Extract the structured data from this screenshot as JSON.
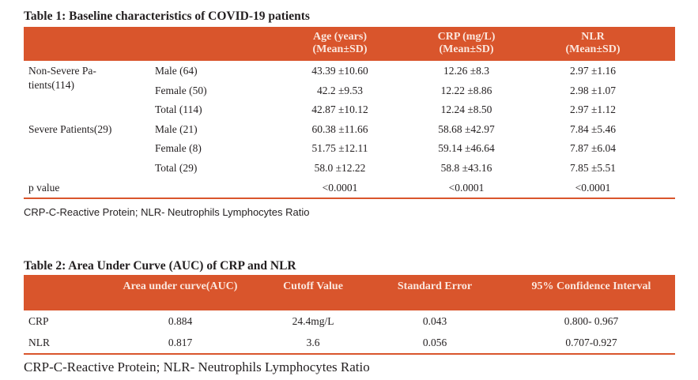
{
  "table1": {
    "caption": "Table 1: Baseline characteristics of COVID-19 patients",
    "headers": [
      {
        "line1": "Age (years)",
        "line2": "(Mean±SD)"
      },
      {
        "line1": "CRP (mg/L)",
        "line2": "(Mean±SD)"
      },
      {
        "line1": "NLR",
        "line2": "(Mean±SD)"
      }
    ],
    "groups": [
      "Non-Severe Pa-",
      "tients(114)",
      "Severe Patients(29)"
    ],
    "rows": [
      {
        "sub": "Male (64)",
        "age": "43.39 ±10.60",
        "crp": "12.26 ±8.3",
        "nlr": "2.97 ±1.16"
      },
      {
        "sub": "Female (50)",
        "age": "42.2 ±9.53",
        "crp": "12.22 ±8.86",
        "nlr": "2.98 ±1.07"
      },
      {
        "sub": "Total (114)",
        "age": "42.87 ±10.12",
        "crp": "12.24 ±8.50",
        "nlr": "2.97 ±1.12"
      },
      {
        "sub": "Male (21)",
        "age": "60.38 ±11.66",
        "crp": "58.68 ±42.97",
        "nlr": "7.84 ±5.46"
      },
      {
        "sub": "Female (8)",
        "age": "51.75 ±12.11",
        "crp": "59.14 ±46.64",
        "nlr": "7.87 ±6.04"
      },
      {
        "sub": "Total (29)",
        "age": "58.0 ±12.22",
        "crp": "58.8 ±43.16",
        "nlr": "7.85 ±5.51"
      }
    ],
    "pvalue": {
      "label": "p value",
      "age": "<0.0001",
      "crp": "<0.0001",
      "nlr": "<0.0001"
    },
    "footnote": "CRP-C-Reactive Protein; NLR- Neutrophils Lymphocytes Ratio"
  },
  "table2": {
    "caption": "Table 2: Area Under Curve (AUC) of CRP and NLR",
    "headers": [
      "Area under curve(AUC)",
      "Cutoff Value",
      "Standard Error",
      "95% Confidence Interval"
    ],
    "rows": [
      {
        "label": "CRP",
        "auc": "0.884",
        "cutoff": "24.4mg/L",
        "se": "0.043",
        "ci": "0.800- 0.967"
      },
      {
        "label": "NLR",
        "auc": "0.817",
        "cutoff": "3.6",
        "se": "0.056",
        "ci": "0.707-0.927"
      }
    ],
    "footnote": "CRP-C-Reactive Protein; NLR- Neutrophils Lymphocytes Ratio"
  },
  "colors": {
    "header_bg": "#d9552c",
    "header_text": "#fbe7de",
    "body_text": "#231f20"
  }
}
